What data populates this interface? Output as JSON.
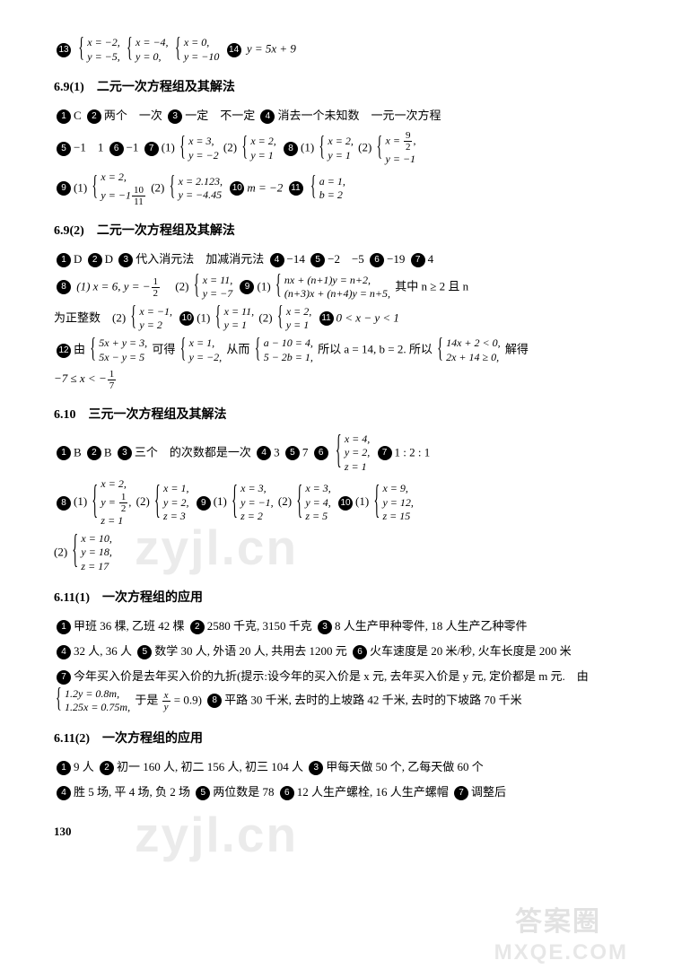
{
  "top_row": {
    "n13": "13",
    "sys1_l1": "x = −2,",
    "sys1_l2": "y = −5,",
    "sys2_l1": "x = −4,",
    "sys2_l2": "y = 0,",
    "sys3_l1": "x = 0,",
    "sys3_l2": "y = −10",
    "n14": "14",
    "eq14": "y = 5x + 9"
  },
  "s691": {
    "title": "6.9(1)　二元一次方程组及其解法",
    "n1": "1",
    "a1": "C",
    "n2": "2",
    "a2": "两个　一次",
    "n3": "3",
    "a3": "一定　不一定",
    "n4": "4",
    "a4": "消去一个未知数　一元一次方程",
    "n5": "5",
    "a5": "−1　1",
    "n6": "6",
    "a6": "−1",
    "n7": "7",
    "a7_1": "(1)",
    "s7_1_l1": "x = 3,",
    "s7_1_l2": "y = −2",
    "a7_2": "(2)",
    "s7_2_l1": "x = 2,",
    "s7_2_l2": "y = 1",
    "n8": "8",
    "a8_1": "(1)",
    "s8_1_l1": "x = 2,",
    "s8_1_l2": "y = 1",
    "a8_2": "(2)",
    "s8_2_l1_a": "x = ",
    "s8_2_l1_fn": "9",
    "s8_2_l1_fd": "2",
    "s8_2_l1_b": ",",
    "s8_2_l2": "y = −1",
    "n9": "9",
    "a9_1": "(1)",
    "s9_1_l1": "x = 2,",
    "s9_1_l2_a": "y = −1",
    "s9_1_l2_fn": "10",
    "s9_1_l2_fd": "11",
    "a9_2": "(2)",
    "s9_2_l1": "x = 2.123,",
    "s9_2_l2": "y = −4.45",
    "n10": "10",
    "a10": "m = −2",
    "n11": "11",
    "s11_l1": "a = 1,",
    "s11_l2": "b = 2"
  },
  "s692": {
    "title": "6.9(2)　二元一次方程组及其解法",
    "n1": "1",
    "a1": "D",
    "n2": "2",
    "a2": "D",
    "n3": "3",
    "a3": "代入消元法　加减消元法",
    "n4": "4",
    "a4": "−14",
    "n5": "5",
    "a5": "−2　−5",
    "n6": "6",
    "a6": "−19",
    "n7": "7",
    "a7": "4",
    "n8": "8",
    "a8_1": "(1) x = 6, y = −",
    "a8_1_fn": "1",
    "a8_1_fd": "2",
    "a8_2": "　(2)",
    "s8_2_l1": "x = 11,",
    "s8_2_l2": "y = −7",
    "n9": "9",
    "a9_1": "(1)",
    "s9_1_l1": "nx + (n+1)y = n+2,",
    "s9_1_l2": "(n+3)x + (n+4)y = n+5,",
    "a9_tail": "其中 n ≥ 2 且 n",
    "cont": "为正整数　(2)",
    "s9_2_l1": "x = −1,",
    "s9_2_l2": "y = 2",
    "n10": "10",
    "a10_1": "(1)",
    "s10_1_l1": "x = 11,",
    "s10_1_l2": "y = 1",
    "a10_2": "(2)",
    "s10_2_l1": "x = 2,",
    "s10_2_l2": "y = 1",
    "n11": "11",
    "a11": "0 < x − y < 1",
    "n12": "12",
    "a12_a": "由",
    "s12_1_l1": "5x + y = 3,",
    "s12_1_l2": "5x − y = 5",
    "a12_b": "可得",
    "s12_2_l1": "x = 1,",
    "s12_2_l2": "y = −2,",
    "a12_c": "从而",
    "s12_3_l1": "a − 10 = 4,",
    "s12_3_l2": "5 − 2b = 1,",
    "a12_d": "所以 a = 14, b = 2. 所以",
    "s12_4_l1": "14x + 2 < 0,",
    "s12_4_l2": "2x + 14 ≥ 0,",
    "a12_e": "解得",
    "a12_f": "−7 ≤ x < −",
    "a12_fn": "1",
    "a12_fd": "7"
  },
  "s610": {
    "title": "6.10　三元一次方程组及其解法",
    "n1": "1",
    "a1": "B",
    "n2": "2",
    "a2": "B",
    "n3": "3",
    "a3": "三个　的次数都是一次",
    "n4": "4",
    "a4": "3",
    "n5": "5",
    "a5": "7",
    "n6": "6",
    "s6_l1": "x = 4,",
    "s6_l2": "y = 2,",
    "s6_l3": "z = 1",
    "n7": "7",
    "a7": "1 : 2 : 1",
    "n8": "8",
    "a8_1": "(1)",
    "s8_1_l1": "x = 2,",
    "s8_1_l2_a": "y = ",
    "s8_1_l2_fn": "1",
    "s8_1_l2_fd": "2",
    "s8_1_l2_b": ",",
    "s8_1_l3": "z = 1",
    "a8_2": "(2)",
    "s8_2_l1": "x = 1,",
    "s8_2_l2": "y = 2,",
    "s8_2_l3": "z = 3",
    "n9": "9",
    "a9_1": "(1)",
    "s9_1_l1": "x = 3,",
    "s9_1_l2": "y = −1,",
    "s9_1_l3": "z = 2",
    "a9_2": "(2)",
    "s9_2_l1": "x = 3,",
    "s9_2_l2": "y = 4,",
    "s9_2_l3": "z = 5",
    "n10": "10",
    "a10_1": "(1)",
    "s10_1_l1": "x = 9,",
    "s10_1_l2": "y = 12,",
    "s10_1_l3": "z = 15",
    "a10_2": "(2)",
    "s10_2_l1": "x = 10,",
    "s10_2_l2": "y = 18,",
    "s10_2_l3": "z = 17"
  },
  "s6111": {
    "title": "6.11(1)　一次方程组的应用",
    "n1": "1",
    "a1": "甲班 36 棵, 乙班 42 棵",
    "n2": "2",
    "a2": "2580 千克, 3150 千克",
    "n3": "3",
    "a3": "8 人生产甲种零件, 18 人生产乙种零件",
    "n4": "4",
    "a4": "32 人, 36 人",
    "n5": "5",
    "a5": "数学 30 人, 外语 20 人, 共用去 1200 元",
    "n6": "6",
    "a6": "火车速度是 20 米/秒, 火车长度是 200 米",
    "n7": "7",
    "a7_a": "今年买入价是去年买入价的九折(提示:设今年的买入价是 x 元, 去年买入价是 y 元, 定价都是 m 元.　由",
    "s7_l1": "1.2y = 0.8m,",
    "s7_l2": "1.25x = 0.75m,",
    "a7_b": "于是",
    "a7_fn": "x",
    "a7_fd": "y",
    "a7_c": "= 0.9)",
    "n8": "8",
    "a8": "平路 30 千米, 去时的上坡路 42 千米, 去时的下坡路 70 千米"
  },
  "s6112": {
    "title": "6.11(2)　一次方程组的应用",
    "n1": "1",
    "a1": "9 人",
    "n2": "2",
    "a2": "初一 160 人, 初二 156 人, 初三 104 人",
    "n3": "3",
    "a3": "甲每天做 50 个, 乙每天做 60 个",
    "n4": "4",
    "a4": "胜 5 场, 平 4 场, 负 2 场",
    "n5": "5",
    "a5": "两位数是 78",
    "n6": "6",
    "a6": "12 人生产螺栓, 16 人生产螺帽",
    "n7": "7",
    "a7": "调整后"
  },
  "page": "130"
}
